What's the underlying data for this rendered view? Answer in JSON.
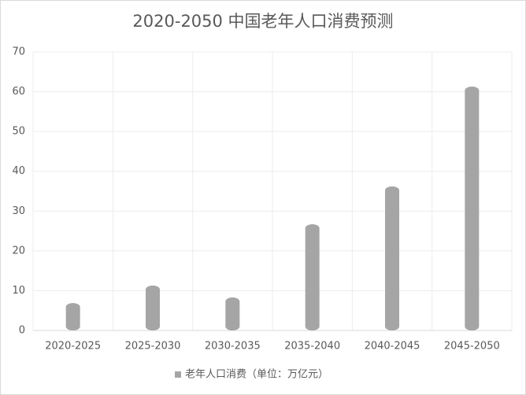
{
  "chart_data": {
    "type": "bar",
    "title": "2020-2050 中国老年人口消费预测",
    "categories": [
      "2020-2025",
      "2025-2030",
      "2030-2035",
      "2035-2040",
      "2040-2045",
      "2045-2050"
    ],
    "series": [
      {
        "name": "老年人口消费（单位：万亿元）",
        "color": "#a5a5a5",
        "values": [
          6.9,
          11.3,
          8.3,
          26.7,
          36.2,
          61.3
        ]
      }
    ],
    "ylim": [
      0,
      70
    ],
    "yticks": [
      0,
      10,
      20,
      30,
      40,
      50,
      60,
      70
    ],
    "grid": true,
    "legend": "bottom"
  }
}
